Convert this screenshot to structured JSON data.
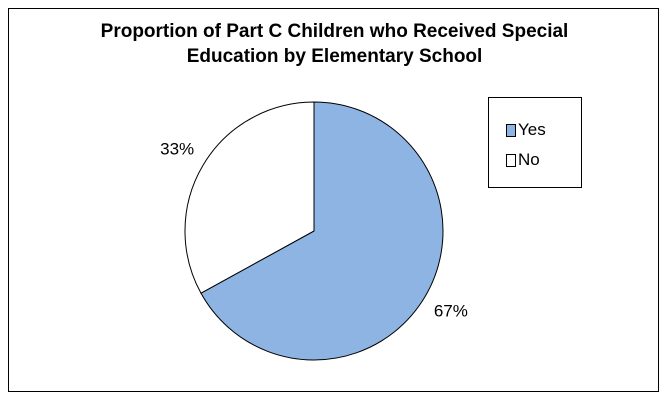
{
  "chart_data": {
    "type": "pie",
    "title_lines": [
      "Proportion of Part C Children who Received Special",
      "Education by Elementary School"
    ],
    "categories": [
      "Yes",
      "No"
    ],
    "values": [
      67,
      33
    ],
    "value_labels": [
      "67%",
      "33%"
    ],
    "colors": [
      "#8EB4E3",
      "#FFFFFF"
    ],
    "legend_position": "right"
  }
}
